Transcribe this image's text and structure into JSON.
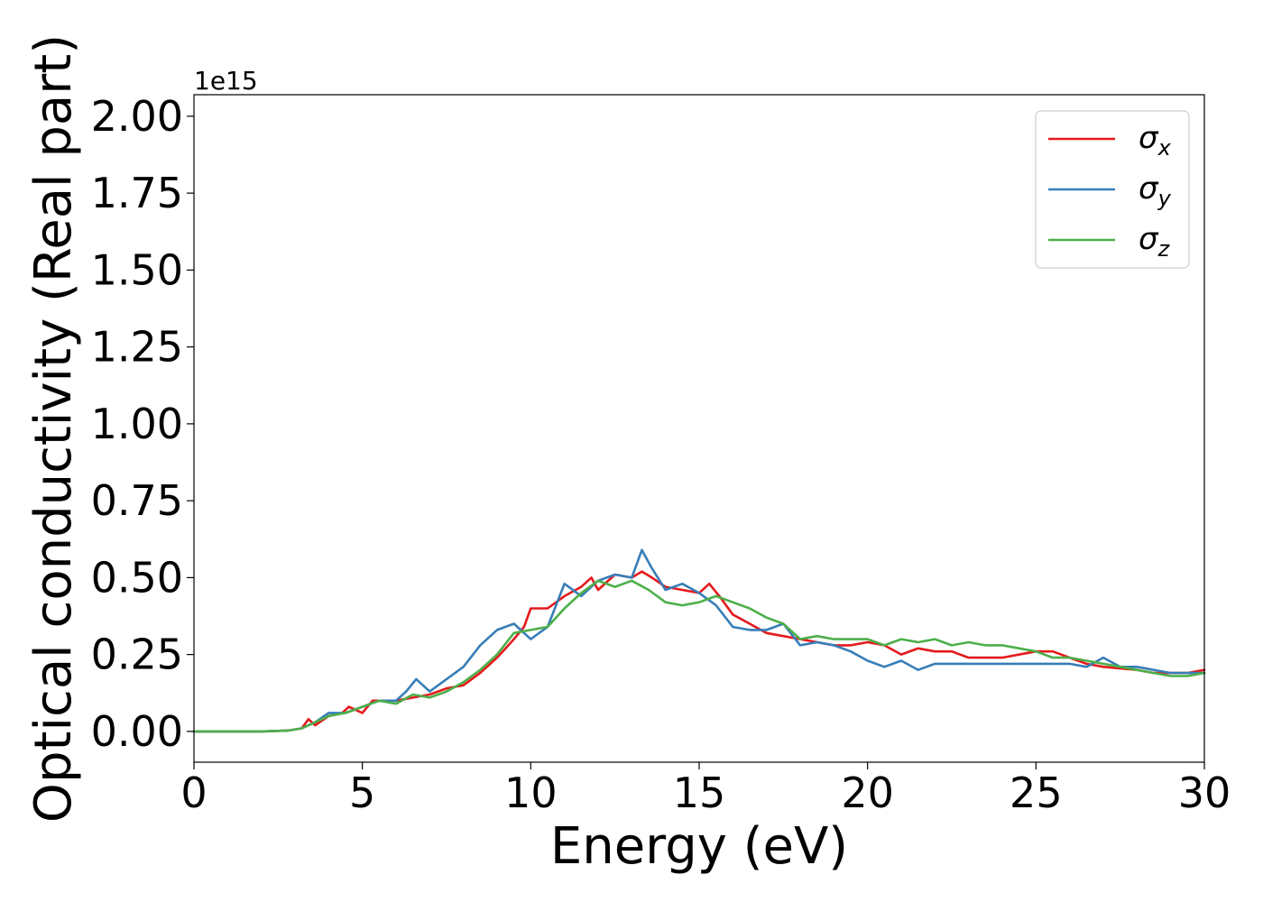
{
  "chart_data": {
    "type": "line",
    "title": "",
    "xlabel": "Energy (eV)",
    "ylabel": "Optical conductivity (Real part)",
    "y_offset_label": "1e15",
    "xlim": [
      0,
      30
    ],
    "ylim": [
      -0.1,
      2.07
    ],
    "xticks": [
      0,
      5,
      10,
      15,
      20,
      25,
      30
    ],
    "xtick_labels": [
      "0",
      "5",
      "10",
      "15",
      "20",
      "25",
      "30"
    ],
    "yticks": [
      0.0,
      0.25,
      0.5,
      0.75,
      1.0,
      1.25,
      1.5,
      1.75,
      2.0
    ],
    "ytick_labels": [
      "0.00",
      "0.25",
      "0.50",
      "0.75",
      "1.00",
      "1.25",
      "1.50",
      "1.75",
      "2.00"
    ],
    "grid": false,
    "legend_position": "top-right",
    "series": [
      {
        "name": "σx",
        "symbol": "σ",
        "subscript": "x",
        "color": "#e41a1c",
        "points": [
          [
            0,
            0
          ],
          [
            1,
            0
          ],
          [
            2,
            0
          ],
          [
            2.8,
            0.003
          ],
          [
            3.2,
            0.01
          ],
          [
            3.4,
            0.04
          ],
          [
            3.6,
            0.02
          ],
          [
            4,
            0.05
          ],
          [
            4.4,
            0.06
          ],
          [
            4.6,
            0.08
          ],
          [
            5,
            0.06
          ],
          [
            5.3,
            0.1
          ],
          [
            5.6,
            0.1
          ],
          [
            6,
            0.1
          ],
          [
            6.5,
            0.11
          ],
          [
            7,
            0.12
          ],
          [
            7.5,
            0.14
          ],
          [
            8,
            0.15
          ],
          [
            8.5,
            0.19
          ],
          [
            9,
            0.24
          ],
          [
            9.5,
            0.3
          ],
          [
            9.8,
            0.34
          ],
          [
            10,
            0.4
          ],
          [
            10.5,
            0.4
          ],
          [
            11,
            0.44
          ],
          [
            11.5,
            0.47
          ],
          [
            11.8,
            0.5
          ],
          [
            12,
            0.46
          ],
          [
            12.5,
            0.51
          ],
          [
            13,
            0.5
          ],
          [
            13.3,
            0.52
          ],
          [
            13.6,
            0.5
          ],
          [
            14,
            0.47
          ],
          [
            14.5,
            0.46
          ],
          [
            15,
            0.45
          ],
          [
            15.3,
            0.48
          ],
          [
            15.6,
            0.44
          ],
          [
            16,
            0.38
          ],
          [
            16.5,
            0.35
          ],
          [
            17,
            0.32
          ],
          [
            17.5,
            0.31
          ],
          [
            18,
            0.3
          ],
          [
            19,
            0.28
          ],
          [
            19.5,
            0.28
          ],
          [
            20,
            0.29
          ],
          [
            20.5,
            0.28
          ],
          [
            21,
            0.25
          ],
          [
            21.5,
            0.27
          ],
          [
            22,
            0.26
          ],
          [
            22.5,
            0.26
          ],
          [
            23,
            0.24
          ],
          [
            24,
            0.24
          ],
          [
            25,
            0.26
          ],
          [
            25.5,
            0.26
          ],
          [
            26,
            0.24
          ],
          [
            26.5,
            0.22
          ],
          [
            27,
            0.21
          ],
          [
            28,
            0.2
          ],
          [
            28.5,
            0.19
          ],
          [
            29,
            0.19
          ],
          [
            29.5,
            0.19
          ],
          [
            30,
            0.2
          ]
        ]
      },
      {
        "name": "σy",
        "symbol": "σ",
        "subscript": "y",
        "color": "#377eb8",
        "points": [
          [
            0,
            0
          ],
          [
            1,
            0
          ],
          [
            2,
            0
          ],
          [
            2.8,
            0.003
          ],
          [
            3.2,
            0.01
          ],
          [
            3.6,
            0.03
          ],
          [
            4,
            0.06
          ],
          [
            4.5,
            0.06
          ],
          [
            5,
            0.08
          ],
          [
            5.5,
            0.1
          ],
          [
            6,
            0.1
          ],
          [
            6.3,
            0.13
          ],
          [
            6.6,
            0.17
          ],
          [
            7,
            0.13
          ],
          [
            7.5,
            0.17
          ],
          [
            8,
            0.21
          ],
          [
            8.5,
            0.28
          ],
          [
            9,
            0.33
          ],
          [
            9.5,
            0.35
          ],
          [
            10,
            0.3
          ],
          [
            10.5,
            0.34
          ],
          [
            11,
            0.48
          ],
          [
            11.5,
            0.44
          ],
          [
            12,
            0.49
          ],
          [
            12.5,
            0.51
          ],
          [
            13,
            0.5
          ],
          [
            13.3,
            0.59
          ],
          [
            13.6,
            0.53
          ],
          [
            14,
            0.46
          ],
          [
            14.5,
            0.48
          ],
          [
            15,
            0.45
          ],
          [
            15.5,
            0.41
          ],
          [
            16,
            0.34
          ],
          [
            16.5,
            0.33
          ],
          [
            17,
            0.33
          ],
          [
            17.5,
            0.35
          ],
          [
            18,
            0.28
          ],
          [
            18.5,
            0.29
          ],
          [
            19,
            0.28
          ],
          [
            19.5,
            0.26
          ],
          [
            20,
            0.23
          ],
          [
            20.5,
            0.21
          ],
          [
            21,
            0.23
          ],
          [
            21.5,
            0.2
          ],
          [
            22,
            0.22
          ],
          [
            23,
            0.22
          ],
          [
            24,
            0.22
          ],
          [
            25,
            0.22
          ],
          [
            26,
            0.22
          ],
          [
            26.5,
            0.21
          ],
          [
            27,
            0.24
          ],
          [
            27.5,
            0.21
          ],
          [
            28,
            0.21
          ],
          [
            29,
            0.19
          ],
          [
            30,
            0.19
          ]
        ]
      },
      {
        "name": "σz",
        "symbol": "σ",
        "subscript": "z",
        "color": "#4daf4a",
        "points": [
          [
            0,
            0
          ],
          [
            1,
            0
          ],
          [
            2,
            0
          ],
          [
            2.8,
            0.003
          ],
          [
            3.2,
            0.01
          ],
          [
            3.6,
            0.03
          ],
          [
            4,
            0.05
          ],
          [
            4.5,
            0.06
          ],
          [
            5,
            0.08
          ],
          [
            5.5,
            0.1
          ],
          [
            6,
            0.09
          ],
          [
            6.5,
            0.12
          ],
          [
            7,
            0.11
          ],
          [
            7.5,
            0.13
          ],
          [
            8,
            0.16
          ],
          [
            8.5,
            0.2
          ],
          [
            9,
            0.25
          ],
          [
            9.5,
            0.32
          ],
          [
            10,
            0.33
          ],
          [
            10.5,
            0.34
          ],
          [
            11,
            0.4
          ],
          [
            11.5,
            0.45
          ],
          [
            12,
            0.49
          ],
          [
            12.5,
            0.47
          ],
          [
            13,
            0.49
          ],
          [
            13.5,
            0.46
          ],
          [
            14,
            0.42
          ],
          [
            14.5,
            0.41
          ],
          [
            15,
            0.42
          ],
          [
            15.5,
            0.44
          ],
          [
            16,
            0.42
          ],
          [
            16.5,
            0.4
          ],
          [
            17,
            0.37
          ],
          [
            17.5,
            0.35
          ],
          [
            18,
            0.3
          ],
          [
            18.5,
            0.31
          ],
          [
            19,
            0.3
          ],
          [
            19.5,
            0.3
          ],
          [
            20,
            0.3
          ],
          [
            20.5,
            0.28
          ],
          [
            21,
            0.3
          ],
          [
            21.5,
            0.29
          ],
          [
            22,
            0.3
          ],
          [
            22.5,
            0.28
          ],
          [
            23,
            0.29
          ],
          [
            23.5,
            0.28
          ],
          [
            24,
            0.28
          ],
          [
            24.5,
            0.27
          ],
          [
            25,
            0.26
          ],
          [
            25.5,
            0.24
          ],
          [
            26,
            0.24
          ],
          [
            26.5,
            0.23
          ],
          [
            27,
            0.22
          ],
          [
            27.5,
            0.21
          ],
          [
            28,
            0.2
          ],
          [
            28.5,
            0.19
          ],
          [
            29,
            0.18
          ],
          [
            29.5,
            0.18
          ],
          [
            30,
            0.19
          ]
        ]
      }
    ]
  }
}
